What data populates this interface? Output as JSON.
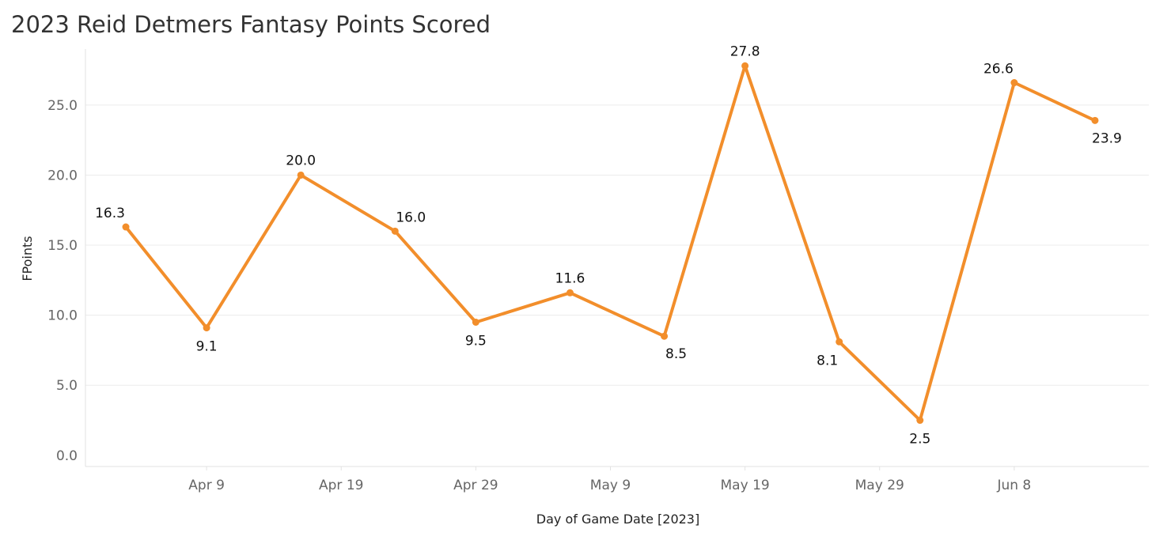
{
  "chart_data": {
    "type": "line",
    "title": "2023 Reid Detmers Fantasy Points Scored",
    "xlabel": "Day of Game Date [2023]",
    "ylabel": "FPoints",
    "x_tick_labels": [
      {
        "date": "2023-04-09",
        "label": "Apr 9"
      },
      {
        "date": "2023-04-19",
        "label": "Apr 19"
      },
      {
        "date": "2023-04-29",
        "label": "Apr 29"
      },
      {
        "date": "2023-05-09",
        "label": "May 9"
      },
      {
        "date": "2023-05-19",
        "label": "May 19"
      },
      {
        "date": "2023-05-29",
        "label": "May 29"
      },
      {
        "date": "2023-06-08",
        "label": "Jun 8"
      }
    ],
    "xlim": [
      "2023-03-31",
      "2023-06-18"
    ],
    "y_ticks": [
      0.0,
      5.0,
      10.0,
      15.0,
      20.0,
      25.0
    ],
    "y_tick_labels": [
      "0.0",
      "5.0",
      "10.0",
      "15.0",
      "20.0",
      "25.0"
    ],
    "ylim": [
      -0.8,
      29.0
    ],
    "grid": true,
    "line_color": "#f28e2b",
    "series": [
      {
        "points": [
          {
            "x": "2023-04-03",
            "y": 16.3,
            "label": "16.3",
            "label_pos": "above-left"
          },
          {
            "x": "2023-04-09",
            "y": 9.1,
            "label": "9.1",
            "label_pos": "below"
          },
          {
            "x": "2023-04-16",
            "y": 20.0,
            "label": "20.0",
            "label_pos": "above"
          },
          {
            "x": "2023-04-23",
            "y": 16.0,
            "label": "16.0",
            "label_pos": "above-right"
          },
          {
            "x": "2023-04-29",
            "y": 9.5,
            "label": "9.5",
            "label_pos": "below"
          },
          {
            "x": "2023-05-06",
            "y": 11.6,
            "label": "11.6",
            "label_pos": "above"
          },
          {
            "x": "2023-05-13",
            "y": 8.5,
            "label": "8.5",
            "label_pos": "below-right"
          },
          {
            "x": "2023-05-19",
            "y": 27.8,
            "label": "27.8",
            "label_pos": "above"
          },
          {
            "x": "2023-05-26",
            "y": 8.1,
            "label": "8.1",
            "label_pos": "below-left"
          },
          {
            "x": "2023-06-01",
            "y": 2.5,
            "label": "2.5",
            "label_pos": "below"
          },
          {
            "x": "2023-06-08",
            "y": 26.6,
            "label": "26.6",
            "label_pos": "above-left"
          },
          {
            "x": "2023-06-14",
            "y": 23.9,
            "label": "23.9",
            "label_pos": "below-right"
          }
        ]
      }
    ]
  }
}
